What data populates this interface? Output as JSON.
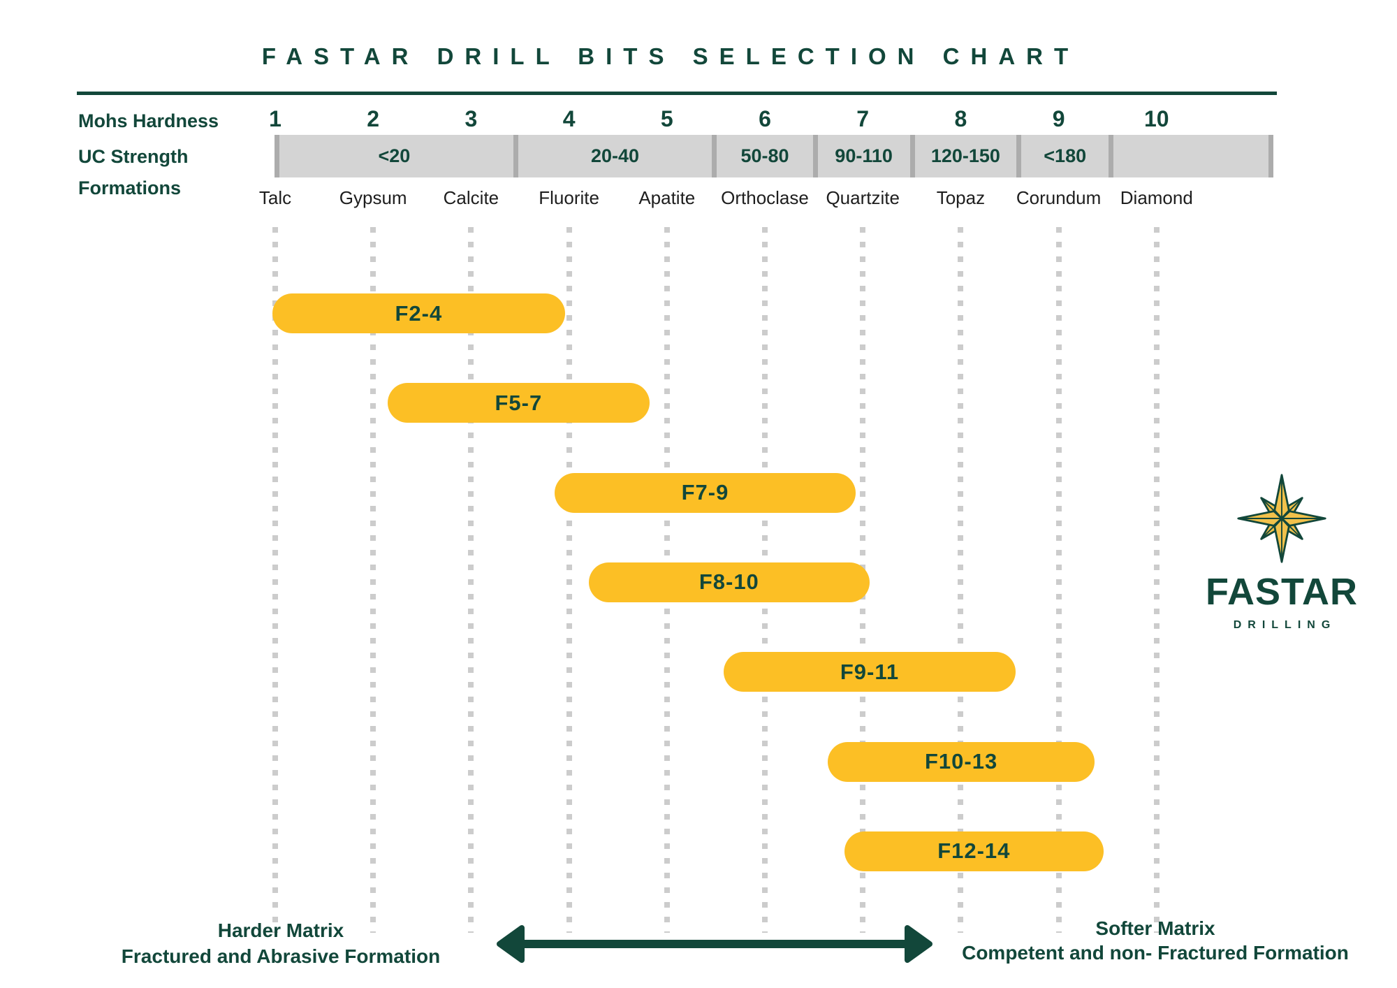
{
  "title": "FASTAR DRILL BITS SELECTION CHART",
  "colors": {
    "green": "#12473A",
    "yellow": "#FCBF25",
    "star-yellow": "#F2C14B",
    "bar-gray": "#D4D4D4",
    "divider-gray": "#ACACAC",
    "dot-gray": "#CCCCCC",
    "formation-text": "#1E1E1E"
  },
  "rows": {
    "mohs_label": "Mohs Hardness",
    "uc_label": "UC Strength",
    "formations_label": "Formations"
  },
  "chart_data": {
    "type": "gantt-range",
    "title": "FASTAR DRILL BITS SELECTION CHART",
    "x_axis": {
      "label": "Mohs Hardness",
      "ticks": [
        1,
        2,
        3,
        4,
        5,
        6,
        7,
        8,
        9,
        10
      ],
      "range": [
        1,
        11.2
      ],
      "grid": "dotted-vertical"
    },
    "uc_strength_segments": [
      {
        "label": "<20",
        "from": 1.0,
        "to": 3.48
      },
      {
        "label": "20-40",
        "from": 3.48,
        "to": 5.51
      },
      {
        "label": "50-80",
        "from": 5.51,
        "to": 6.54
      },
      {
        "label": "90-110",
        "from": 6.54,
        "to": 7.53
      },
      {
        "label": "120-150",
        "from": 7.53,
        "to": 8.62
      },
      {
        "label": "<180",
        "from": 8.62,
        "to": 9.56
      },
      {
        "label": "",
        "from": 9.56,
        "to": 11.19
      }
    ],
    "formations": [
      "Talc",
      "Gypsum",
      "Calcite",
      "Fluorite",
      "Apatite",
      "Orthoclase",
      "Quartzite",
      "Topaz",
      "Corundum",
      "Diamond"
    ],
    "bits": [
      {
        "label": "F2-4",
        "from": 0.97,
        "to": 3.96
      },
      {
        "label": "F5-7",
        "from": 2.15,
        "to": 4.82
      },
      {
        "label": "F7-9",
        "from": 3.85,
        "to": 6.93
      },
      {
        "label": "F8-10",
        "from": 4.2,
        "to": 7.07
      },
      {
        "label": "F9-11",
        "from": 5.58,
        "to": 8.56
      },
      {
        "label": "F10-13",
        "from": 6.64,
        "to": 9.37
      },
      {
        "label": "F12-14",
        "from": 6.81,
        "to": 9.46
      }
    ]
  },
  "annotations": {
    "left": {
      "line1": "Harder Matrix",
      "line2": "Fractured and Abrasive Formation"
    },
    "right": {
      "line1": "Softer Matrix",
      "line2": "Competent and non- Fractured Formation"
    }
  },
  "logo": {
    "name": "FASTAR",
    "subtitle": "DRILLING"
  }
}
